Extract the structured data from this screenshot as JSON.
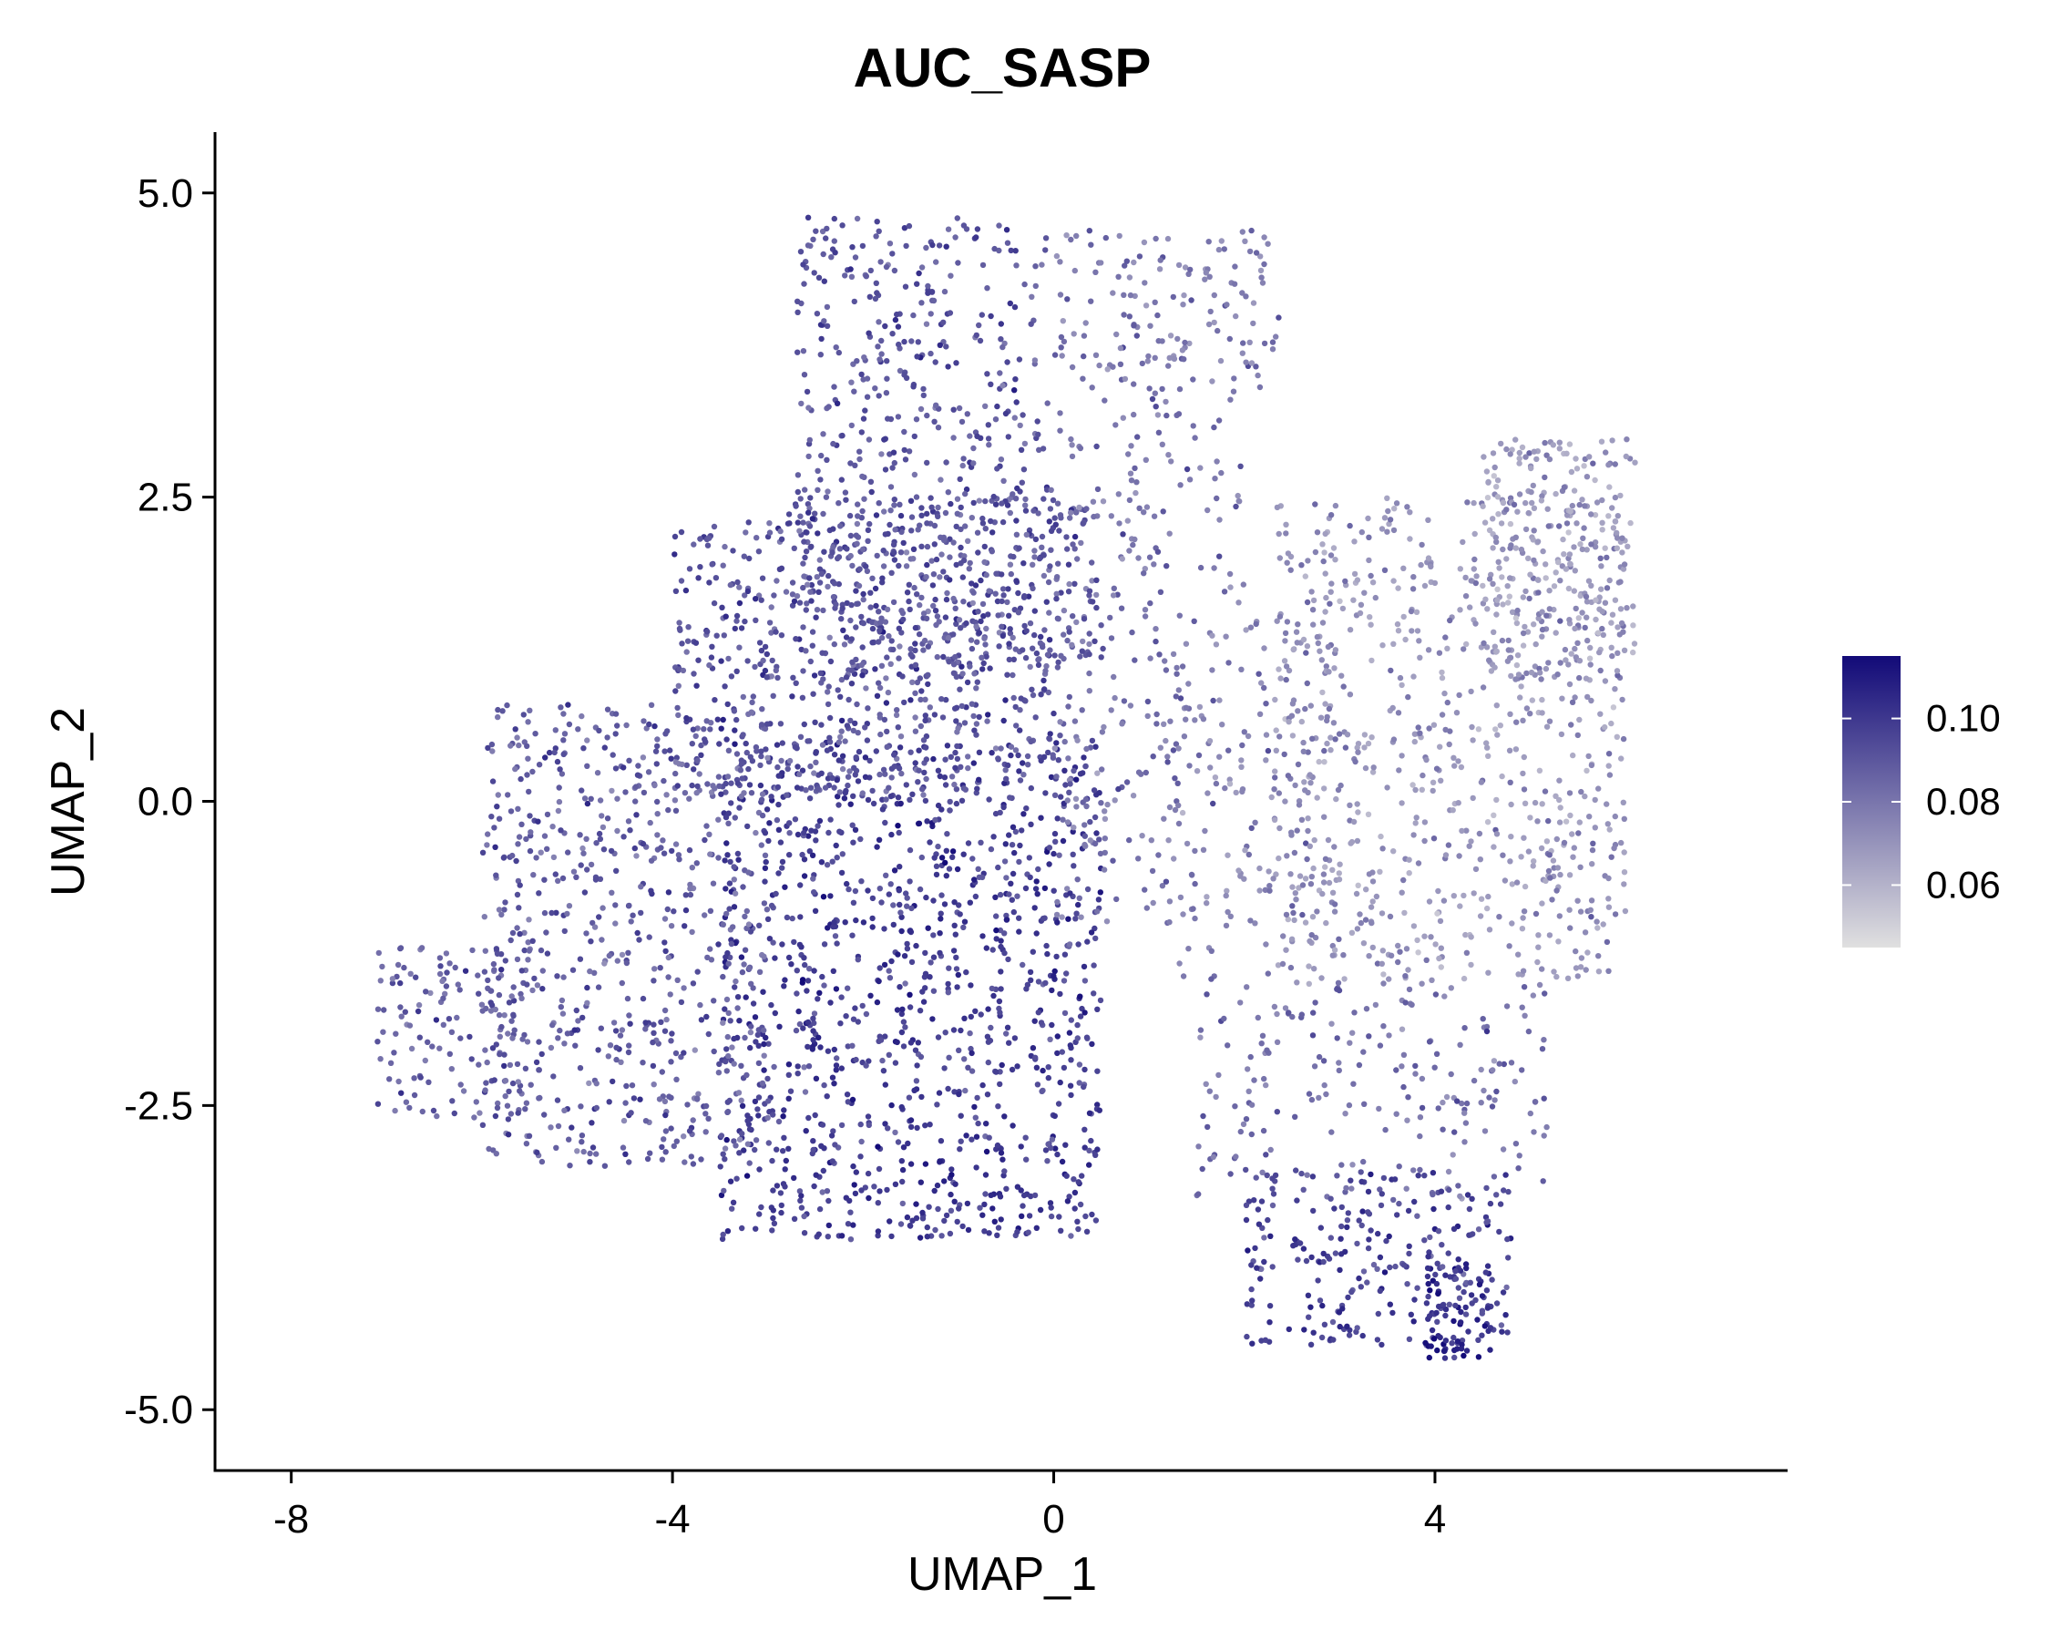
{
  "chart_data": {
    "type": "scatter",
    "title": "AUC_SASP",
    "xlabel": "UMAP_1",
    "ylabel": "UMAP_2",
    "xlim": [
      -8.8,
      7.7
    ],
    "ylim": [
      -5.5,
      5.5
    ],
    "x_ticks": [
      {
        "value": -8,
        "label": "-8"
      },
      {
        "value": -4,
        "label": "-4"
      },
      {
        "value": 0,
        "label": "0"
      },
      {
        "value": 4,
        "label": "4"
      }
    ],
    "y_ticks": [
      {
        "value": 5.0,
        "label": "5.0"
      },
      {
        "value": 2.5,
        "label": "2.5"
      },
      {
        "value": 0.0,
        "label": "0.0"
      },
      {
        "value": -2.5,
        "label": "-2.5"
      },
      {
        "value": -5.0,
        "label": "-5.0"
      }
    ],
    "grid": false,
    "legend_position": "right",
    "color_scale": {
      "low_color": "#e0e0e0",
      "high_color": "#120a78",
      "min": 0.045,
      "max": 0.115,
      "ticks": [
        {
          "value": 0.1,
          "label": "0.10"
        },
        {
          "value": 0.08,
          "label": "0.08"
        },
        {
          "value": 0.06,
          "label": "0.06"
        }
      ]
    },
    "point_regions": [
      {
        "x": [
          -3.5,
          0.5
        ],
        "y": [
          -3.6,
          0.5
        ],
        "count": 1100,
        "value_mean": 0.098
      },
      {
        "x": [
          -6.0,
          -3.0
        ],
        "y": [
          -3.0,
          0.8
        ],
        "count": 650,
        "value_mean": 0.088
      },
      {
        "x": [
          -7.1,
          -5.5
        ],
        "y": [
          -2.6,
          -1.2
        ],
        "count": 140,
        "value_mean": 0.087
      },
      {
        "x": [
          -4.0,
          0.0
        ],
        "y": [
          0.0,
          2.3
        ],
        "count": 650,
        "value_mean": 0.091
      },
      {
        "x": [
          -2.8,
          0.5
        ],
        "y": [
          1.0,
          2.5
        ],
        "count": 350,
        "value_mean": 0.089
      },
      {
        "x": [
          -2.7,
          0.0
        ],
        "y": [
          2.3,
          4.8
        ],
        "count": 350,
        "value_mean": 0.091
      },
      {
        "x": [
          0.0,
          2.4
        ],
        "y": [
          3.4,
          4.7
        ],
        "count": 150,
        "value_mean": 0.078
      },
      {
        "x": [
          0.0,
          2.0
        ],
        "y": [
          1.5,
          3.4
        ],
        "count": 120,
        "value_mean": 0.08
      },
      {
        "x": [
          0.0,
          1.5
        ],
        "y": [
          -1.0,
          1.5
        ],
        "count": 150,
        "value_mean": 0.081
      },
      {
        "x": [
          2.3,
          6.0
        ],
        "y": [
          -1.5,
          2.5
        ],
        "count": 750,
        "value_mean": 0.07
      },
      {
        "x": [
          4.5,
          6.1
        ],
        "y": [
          1.0,
          3.0
        ],
        "count": 250,
        "value_mean": 0.068
      },
      {
        "x": [
          1.3,
          3.0
        ],
        "y": [
          -1.5,
          1.5
        ],
        "count": 150,
        "value_mean": 0.076
      },
      {
        "x": [
          1.5,
          5.2
        ],
        "y": [
          -3.3,
          -1.5
        ],
        "count": 200,
        "value_mean": 0.082
      },
      {
        "x": [
          2.0,
          4.8
        ],
        "y": [
          -4.5,
          -3.0
        ],
        "count": 250,
        "value_mean": 0.097
      },
      {
        "x": [
          3.9,
          4.6
        ],
        "y": [
          -4.6,
          -3.8
        ],
        "count": 80,
        "value_mean": 0.105
      }
    ]
  }
}
